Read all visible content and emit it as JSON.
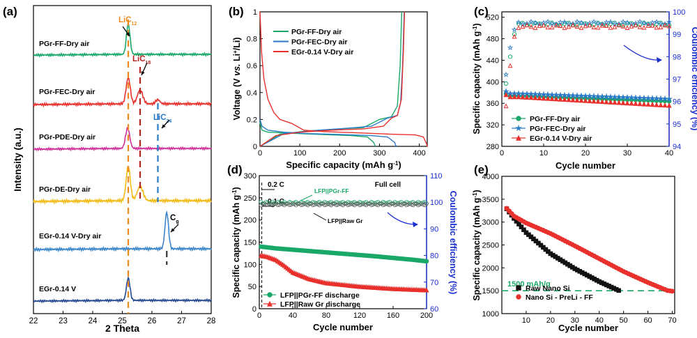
{
  "figure": {
    "panels": [
      "(a)",
      "(b)",
      "(c)",
      "(d)",
      "(e)"
    ]
  },
  "colors": {
    "green": "#1aa869",
    "red": "#e8302c",
    "blue": "#2a7ac7",
    "orange": "#f08a1f",
    "darkred": "#b3241e",
    "magenta": "#d0309a",
    "yellow": "#f2bb15",
    "navy": "#24488f",
    "cyan": "#3a86c8",
    "axisblue": "#1a2fd0",
    "dashgreen": "#1aa869"
  },
  "chart_data": [
    {
      "id": "a",
      "type": "line",
      "panel_label": "(a)",
      "xlabel": "2 Theta",
      "ylabel": "Intensity (a.u.)",
      "xlim": [
        22,
        28
      ],
      "xticks": [
        "22",
        "23",
        "24",
        "25",
        "26",
        "27",
        "28"
      ],
      "series": [
        {
          "name": "PGr-FF-Dry air",
          "color": "#1aa869",
          "peaks": [
            {
              "x": 25.2,
              "h": 1.0,
              "w": 0.06
            }
          ],
          "baseline_level": 5
        },
        {
          "name": "PGr-FEC-Dry air",
          "color": "#e8302c",
          "peaks": [
            {
              "x": 25.2,
              "h": 0.75,
              "w": 0.07
            },
            {
              "x": 25.6,
              "h": 0.4,
              "w": 0.09
            },
            {
              "x": 26.2,
              "h": 0.12,
              "w": 0.07
            }
          ],
          "baseline_level": 4
        },
        {
          "name": "PGr-PDE-Dry air",
          "color": "#d0309a",
          "peaks": [
            {
              "x": 25.18,
              "h": 0.7,
              "w": 0.07
            }
          ],
          "baseline_level": 3
        },
        {
          "name": "PGr-DE-Dry air",
          "color": "#f2bb15",
          "peaks": [
            {
              "x": 25.2,
              "h": 0.85,
              "w": 0.07
            },
            {
              "x": 25.6,
              "h": 0.35,
              "w": 0.1
            }
          ],
          "baseline_level": 2
        },
        {
          "name": "EGr-0.14 V-Dry air",
          "color": "#3a86c8",
          "peaks": [
            {
              "x": 26.5,
              "h": 1.0,
              "w": 0.06
            }
          ],
          "baseline_level": 1
        },
        {
          "name": "EGr-0.14 V",
          "color": "#24488f",
          "peaks": [
            {
              "x": 25.2,
              "h": 0.8,
              "w": 0.06
            }
          ],
          "baseline_level": 0
        }
      ],
      "reference_lines": [
        {
          "x": 25.2,
          "color": "#f08a1f",
          "label": "LiC",
          "sub": "12"
        },
        {
          "x": 25.6,
          "color": "#b3241e",
          "label": "LiC",
          "sub": "18"
        },
        {
          "x": 26.2,
          "color": "#2a7ac7",
          "label": "LiC",
          "sub": "24"
        },
        {
          "x": 26.5,
          "color": "#333333",
          "label": "C",
          "sub": "g"
        }
      ]
    },
    {
      "id": "b",
      "type": "line",
      "panel_label": "(b)",
      "xlabel": "Specific capacity (mAh g-1)",
      "ylabel": "Voltage (V vs. Li+/Li)",
      "xlim": [
        0,
        420
      ],
      "ylim": [
        0,
        1
      ],
      "xticks": [
        0,
        100,
        200,
        300,
        400
      ],
      "yticks": [
        0,
        0.2,
        0.4,
        0.6,
        0.8,
        1
      ],
      "ytick_labels": [
        "0",
        "0.2",
        "0.4",
        "0.6",
        "0.8",
        "1"
      ],
      "legend": [
        "PGr-FF-Dry air",
        "PGr-FEC-Dry air",
        "EGr-0.14 V-Dry air"
      ],
      "series": [
        {
          "name": "PGr-FF-Dry air",
          "color": "#1aa869",
          "discharge": [
            [
              0,
              0.18
            ],
            [
              5,
              0.12
            ],
            [
              20,
              0.105
            ],
            [
              60,
              0.1
            ],
            [
              120,
              0.092
            ],
            [
              180,
              0.085
            ],
            [
              230,
              0.08
            ],
            [
              270,
              0.07
            ],
            [
              285,
              0.03
            ],
            [
              290,
              0.0
            ]
          ],
          "charge": [
            [
              0,
              0.0
            ],
            [
              50,
              0.09
            ],
            [
              120,
              0.115
            ],
            [
              200,
              0.13
            ],
            [
              260,
              0.14
            ],
            [
              300,
              0.2
            ],
            [
              330,
              0.22
            ],
            [
              345,
              0.3
            ],
            [
              352,
              0.6
            ],
            [
              356,
              1.0
            ]
          ]
        },
        {
          "name": "PGr-FEC-Dry air",
          "color": "#2a7ac7",
          "discharge": [
            [
              0,
              0.2
            ],
            [
              5,
              0.15
            ],
            [
              20,
              0.12
            ],
            [
              60,
              0.105
            ],
            [
              120,
              0.095
            ],
            [
              200,
              0.088
            ],
            [
              280,
              0.08
            ],
            [
              320,
              0.07
            ],
            [
              338,
              0.03
            ],
            [
              342,
              0.0
            ]
          ],
          "charge": [
            [
              0,
              0.0
            ],
            [
              60,
              0.095
            ],
            [
              140,
              0.118
            ],
            [
              220,
              0.135
            ],
            [
              280,
              0.15
            ],
            [
              320,
              0.21
            ],
            [
              345,
              0.23
            ],
            [
              353,
              0.32
            ],
            [
              358,
              0.6
            ],
            [
              362,
              1.0
            ]
          ]
        },
        {
          "name": "EGr-0.14 V-Dry air",
          "color": "#e8302c",
          "discharge": [
            [
              0,
              1.0
            ],
            [
              4,
              0.7
            ],
            [
              10,
              0.5
            ],
            [
              20,
              0.35
            ],
            [
              35,
              0.25
            ],
            [
              50,
              0.2
            ],
            [
              80,
              0.17
            ],
            [
              110,
              0.12
            ],
            [
              160,
              0.11
            ],
            [
              250,
              0.1
            ],
            [
              330,
              0.09
            ],
            [
              390,
              0.085
            ],
            [
              410,
              0.07
            ],
            [
              418,
              0.02
            ],
            [
              420,
              0.0
            ]
          ],
          "charge": [
            [
              0,
              0.0
            ],
            [
              40,
              0.08
            ],
            [
              100,
              0.105
            ],
            [
              180,
              0.12
            ],
            [
              260,
              0.13
            ],
            [
              310,
              0.15
            ],
            [
              330,
              0.21
            ],
            [
              345,
              0.23
            ],
            [
              355,
              0.35
            ],
            [
              360,
              0.7
            ],
            [
              363,
              1.0
            ]
          ]
        }
      ]
    },
    {
      "id": "c",
      "type": "scatter",
      "panel_label": "(c)",
      "xlabel": "Cycle number",
      "ylabel": "Specific capacity (mAh g-1)",
      "y2label": "Coulombic efficiency (%)",
      "xlim": [
        0,
        40
      ],
      "ylim": [
        280,
        530
      ],
      "y2lim": [
        94,
        100
      ],
      "xticks": [
        0,
        10,
        20,
        30,
        40
      ],
      "yticks": [
        280,
        320,
        360,
        400,
        440,
        480,
        520
      ],
      "y2ticks": [
        94,
        95,
        96,
        97,
        98,
        99,
        100
      ],
      "legend": [
        "PGr-FF-Dry air",
        "PGr-FEC-Dry air",
        "EGr-0.14 V-Dry air"
      ],
      "capacity": [
        {
          "name": "PGr-FF-Dry air",
          "color": "#1aa869",
          "marker": "circle",
          "start": 374,
          "end": 364
        },
        {
          "name": "PGr-FEC-Dry air",
          "color": "#2a7ac7",
          "marker": "star",
          "start": 378,
          "end": 368
        },
        {
          "name": "EGr-0.14 V-Dry air",
          "color": "#e8302c",
          "marker": "triangle",
          "start": 372,
          "end": 356
        }
      ],
      "efficiency": [
        {
          "color": "#1aa869",
          "first": [
            96.8,
            98.0,
            99.0
          ],
          "plateau": 99.45
        },
        {
          "color": "#2a7ac7",
          "first": [
            97.2,
            98.4,
            99.2
          ],
          "plateau": 99.5
        },
        {
          "color": "#e8302c",
          "first": [
            95.8,
            97.6,
            98.9
          ],
          "plateau": 99.35
        }
      ]
    },
    {
      "id": "d",
      "type": "scatter",
      "panel_label": "(d)",
      "xlabel": "Cycle number",
      "ylabel": "Specific capacity (mAh g-1)",
      "y2label": "Coulombic efficiency (%)",
      "xlim": [
        0,
        200
      ],
      "ylim": [
        0,
        300
      ],
      "y2lim": [
        60,
        110
      ],
      "xticks": [
        0,
        40,
        80,
        120,
        160,
        200
      ],
      "yticks": [
        0,
        50,
        100,
        150,
        200,
        250,
        300
      ],
      "y2ticks": [
        60,
        70,
        80,
        90,
        100,
        110
      ],
      "legend": [
        "LFP||PGr-FF discharge",
        "LFP||Raw Gr discharge"
      ],
      "annotations": [
        "0.2 C",
        "0.1 C",
        "Full cell",
        "LFP||PGr-FF",
        "LFP||Raw Gr"
      ],
      "capacity": [
        {
          "name": "LFP||PGr-FF discharge",
          "color": "#1aa869",
          "marker": "circle",
          "points": [
            [
              2,
              140
            ],
            [
              20,
              136
            ],
            [
              60,
              130
            ],
            [
              100,
              124
            ],
            [
              140,
              118
            ],
            [
              180,
              111
            ],
            [
              200,
              107
            ]
          ]
        },
        {
          "name": "LFP||Raw Gr discharge",
          "color": "#e8302c",
          "marker": "triangle",
          "points": [
            [
              2,
              120
            ],
            [
              10,
              117
            ],
            [
              20,
              110
            ],
            [
              30,
              97
            ],
            [
              40,
              82
            ],
            [
              60,
              67
            ],
            [
              80,
              58
            ],
            [
              120,
              50
            ],
            [
              160,
              45
            ],
            [
              200,
              42
            ]
          ]
        }
      ],
      "efficiency": [
        {
          "name": "LFP||PGr-FF",
          "color": "#1aa869",
          "plateau": 99.8
        },
        {
          "name": "LFP||Raw Gr",
          "color": "#555555",
          "plateau": 99.2
        }
      ]
    },
    {
      "id": "e",
      "type": "scatter",
      "panel_label": "(e)",
      "xlabel": "Cycle number",
      "ylabel": "Specific capacity (mAh g-1)",
      "xlim": [
        0,
        71
      ],
      "ylim": [
        1000,
        4000
      ],
      "xticks": [
        10,
        20,
        30,
        40,
        50,
        60,
        70
      ],
      "yticks": [
        1000,
        1500,
        2000,
        2500,
        3000,
        3500,
        4000
      ],
      "reference_line": {
        "y": 1500,
        "label": "1500 mAh/g",
        "color": "#1aa869"
      },
      "legend": [
        "Raw Nano Si",
        "Nano Si - PreLi - FF"
      ],
      "series": [
        {
          "name": "Raw Nano Si",
          "color": "#111111",
          "marker": "square",
          "points": [
            [
              2,
              3290
            ],
            [
              5,
              3080
            ],
            [
              10,
              2770
            ],
            [
              20,
              2310
            ],
            [
              30,
              1980
            ],
            [
              40,
              1700
            ],
            [
              48,
              1505
            ]
          ]
        },
        {
          "name": "Nano Si - PreLi - FF",
          "color": "#e8302c",
          "marker": "circle",
          "points": [
            [
              2,
              3300
            ],
            [
              5,
              3130
            ],
            [
              10,
              2980
            ],
            [
              20,
              2750
            ],
            [
              30,
              2480
            ],
            [
              40,
              2200
            ],
            [
              50,
              1920
            ],
            [
              60,
              1680
            ],
            [
              68,
              1505
            ],
            [
              70,
              1490
            ]
          ]
        }
      ]
    }
  ]
}
